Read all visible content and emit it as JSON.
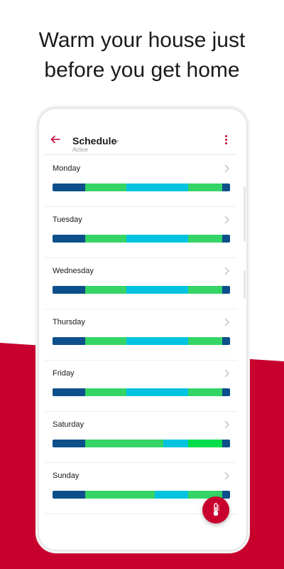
{
  "headline": {
    "line1": "Warm your house just",
    "line2": "before you get home"
  },
  "colors": {
    "brand_red": "#c8002e",
    "dark_blue": "#0d4f8b",
    "green": "#35d466",
    "cyan": "#00c3e0",
    "bright_green": "#00dd4a"
  },
  "appbar": {
    "title": "Schedule",
    "subtitle": "Active",
    "back_icon": "arrow-left-icon",
    "dropdown_icon": "chevron-down-icon",
    "menu_icon": "more-vertical-icon"
  },
  "days": [
    {
      "name": "Monday",
      "segments": [
        {
          "color": "dark_blue",
          "fraction": 0.184
        },
        {
          "color": "green",
          "fraction": 0.232
        },
        {
          "color": "cyan",
          "fraction": 0.348
        },
        {
          "color": "green",
          "fraction": 0.192
        },
        {
          "color": "dark_blue",
          "fraction": 0.044
        }
      ]
    },
    {
      "name": "Tuesday",
      "segments": [
        {
          "color": "dark_blue",
          "fraction": 0.184
        },
        {
          "color": "green",
          "fraction": 0.232
        },
        {
          "color": "cyan",
          "fraction": 0.348
        },
        {
          "color": "green",
          "fraction": 0.192
        },
        {
          "color": "dark_blue",
          "fraction": 0.044
        }
      ]
    },
    {
      "name": "Wednesday",
      "segments": [
        {
          "color": "dark_blue",
          "fraction": 0.184
        },
        {
          "color": "green",
          "fraction": 0.232
        },
        {
          "color": "cyan",
          "fraction": 0.348
        },
        {
          "color": "green",
          "fraction": 0.192
        },
        {
          "color": "dark_blue",
          "fraction": 0.044
        }
      ]
    },
    {
      "name": "Thursday",
      "segments": [
        {
          "color": "dark_blue",
          "fraction": 0.184
        },
        {
          "color": "green",
          "fraction": 0.232
        },
        {
          "color": "cyan",
          "fraction": 0.348
        },
        {
          "color": "green",
          "fraction": 0.192
        },
        {
          "color": "dark_blue",
          "fraction": 0.044
        }
      ]
    },
    {
      "name": "Friday",
      "segments": [
        {
          "color": "dark_blue",
          "fraction": 0.184
        },
        {
          "color": "green",
          "fraction": 0.232
        },
        {
          "color": "cyan",
          "fraction": 0.348
        },
        {
          "color": "green",
          "fraction": 0.192
        },
        {
          "color": "dark_blue",
          "fraction": 0.044
        }
      ]
    },
    {
      "name": "Saturday",
      "segments": [
        {
          "color": "dark_blue",
          "fraction": 0.184
        },
        {
          "color": "green",
          "fraction": 0.44
        },
        {
          "color": "cyan",
          "fraction": 0.14
        },
        {
          "color": "bright_green",
          "fraction": 0.192
        },
        {
          "color": "dark_blue",
          "fraction": 0.044
        }
      ]
    },
    {
      "name": "Sunday",
      "segments": [
        {
          "color": "dark_blue",
          "fraction": 0.184
        },
        {
          "color": "green",
          "fraction": 0.392
        },
        {
          "color": "cyan",
          "fraction": 0.188
        },
        {
          "color": "green",
          "fraction": 0.192
        },
        {
          "color": "dark_blue",
          "fraction": 0.044
        }
      ]
    }
  ],
  "row_arrow_icon": "chevron-right-icon",
  "fab": {
    "icon": "thermometer-icon"
  }
}
